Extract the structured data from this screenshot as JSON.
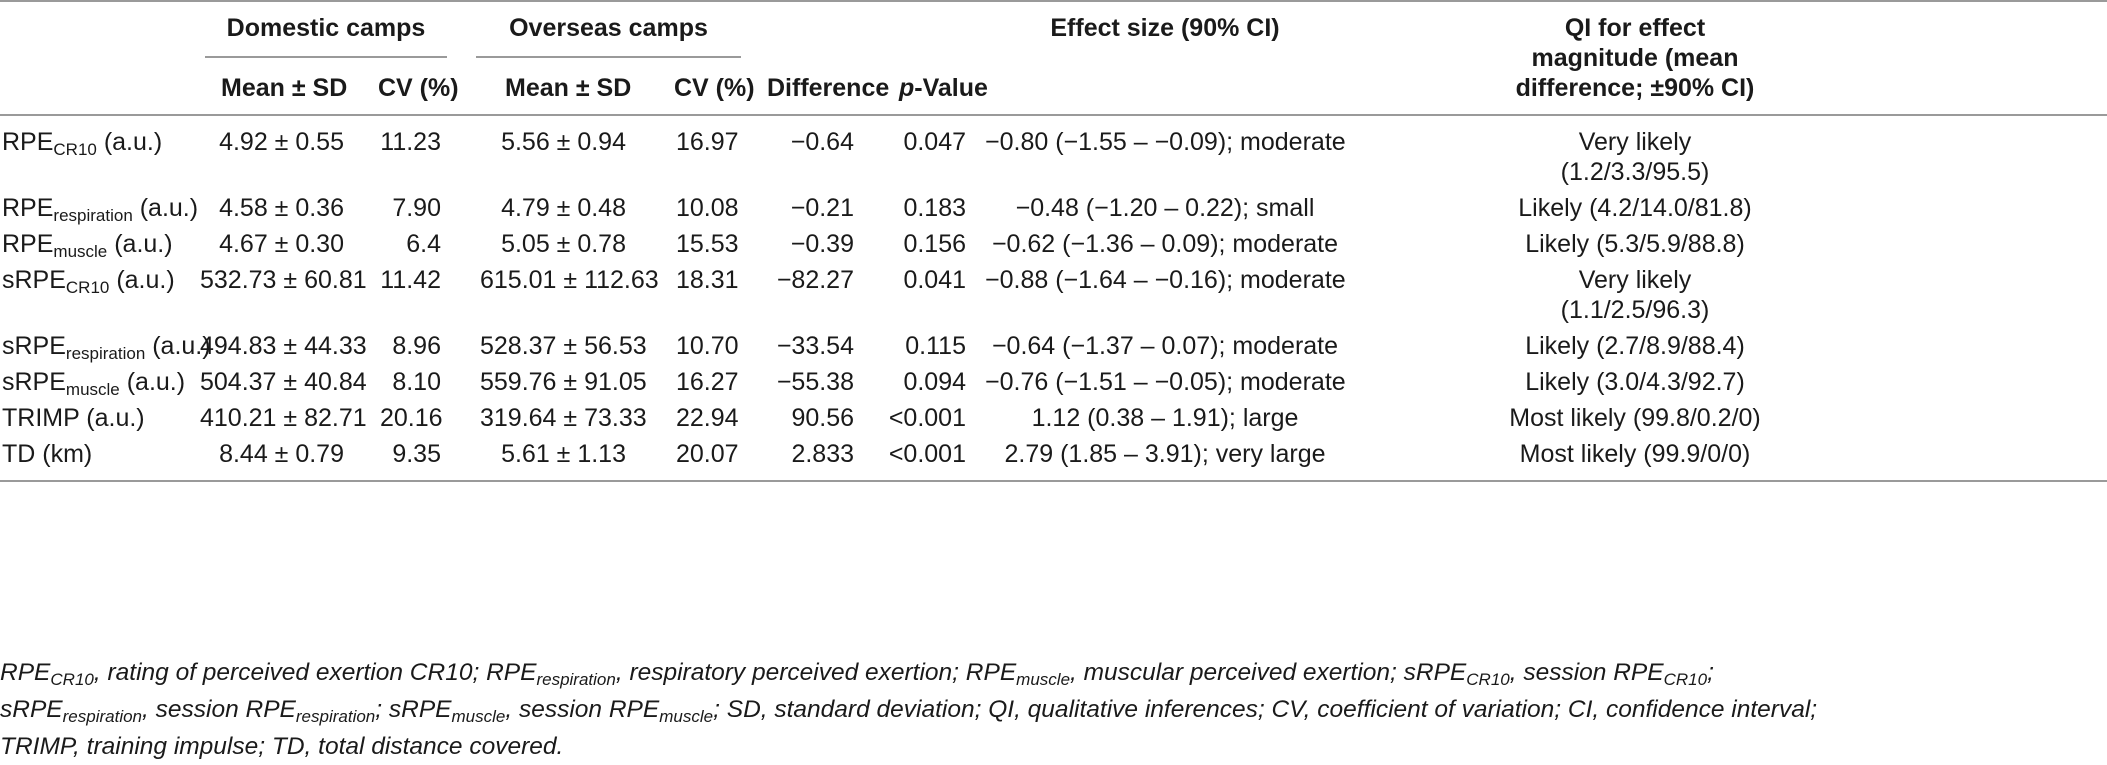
{
  "headers": {
    "domestic": "Domestic camps",
    "overseas": "Overseas camps",
    "mean_sd": "Mean ± SD",
    "cv": "CV (%)",
    "difference": "Difference",
    "p_italic": "p",
    "p_rest": "-Value",
    "effect_size": "Effect size (90% CI)",
    "qi_line1": "QI for effect",
    "qi_line2": "magnitude (mean",
    "qi_line3": "difference; ±90% CI)"
  },
  "rows": [
    {
      "base": "RPE",
      "sub": "CR10",
      "unit": " (a.u.)",
      "dom_mean": "4.92 ± 0.55",
      "dom_cv": "11.23",
      "ovs_mean": "5.56 ± 0.94",
      "ovs_cv": "16.97",
      "diff": "−0.64",
      "p": "0.047",
      "es": "−0.80 (−1.55 – −0.09); moderate",
      "qi1": "Very likely",
      "qi2": "(1.2/3.3/95.5)"
    },
    {
      "base": "RPE",
      "sub": "respiration",
      "unit": " (a.u.)",
      "dom_mean": "4.58 ± 0.36",
      "dom_cv": "7.90",
      "ovs_mean": "4.79 ± 0.48",
      "ovs_cv": "10.08",
      "diff": "−0.21",
      "p": "0.183",
      "es": "−0.48 (−1.20 – 0.22); small",
      "qi1": "Likely (4.2/14.0/81.8)",
      "qi2": ""
    },
    {
      "base": "RPE",
      "sub": "muscle",
      "unit": " (a.u.)",
      "dom_mean": "4.67 ± 0.30",
      "dom_cv": "6.4",
      "ovs_mean": "5.05 ± 0.78",
      "ovs_cv": "15.53",
      "diff": "−0.39",
      "p": "0.156",
      "es": "−0.62 (−1.36 – 0.09); moderate",
      "qi1": "Likely (5.3/5.9/88.8)",
      "qi2": ""
    },
    {
      "base": "sRPE",
      "sub": "CR10",
      "unit": " (a.u.)",
      "dom_mean": "532.73 ± 60.81",
      "dom_cv": "11.42",
      "ovs_mean": "615.01 ± 112.63",
      "ovs_cv": "18.31",
      "diff": "−82.27",
      "p": "0.041",
      "es": "−0.88 (−1.64 – −0.16); moderate",
      "qi1": "Very likely",
      "qi2": "(1.1/2.5/96.3)"
    },
    {
      "base": "sRPE",
      "sub": "respiration",
      "unit": " (a.u.)",
      "dom_mean": "494.83 ± 44.33",
      "dom_cv": "8.96",
      "ovs_mean": "528.37 ± 56.53",
      "ovs_cv": "10.70",
      "diff": "−33.54",
      "p": "0.115",
      "es": "−0.64 (−1.37 – 0.07); moderate",
      "qi1": "Likely (2.7/8.9/88.4)",
      "qi2": ""
    },
    {
      "base": "sRPE",
      "sub": "muscle",
      "unit": " (a.u.)",
      "dom_mean": "504.37 ± 40.84",
      "dom_cv": "8.10",
      "ovs_mean": "559.76 ± 91.05",
      "ovs_cv": "16.27",
      "diff": "−55.38",
      "p": "0.094",
      "es": "−0.76 (−1.51 – −0.05); moderate",
      "qi1": "Likely (3.0/4.3/92.7)",
      "qi2": ""
    },
    {
      "base": "TRIMP",
      "sub": "",
      "unit": " (a.u.)",
      "dom_mean": "410.21 ± 82.71",
      "dom_cv": "20.16",
      "ovs_mean": "319.64 ± 73.33",
      "ovs_cv": "22.94",
      "diff": "90.56",
      "p": "<0.001",
      "es": "1.12 (0.38 – 1.91); large",
      "qi1": "Most likely (99.8/0.2/0)",
      "qi2": ""
    },
    {
      "base": "TD",
      "sub": "",
      "unit": " (km)",
      "dom_mean": "8.44 ± 0.79",
      "dom_cv": "9.35",
      "ovs_mean": "5.61 ± 1.13",
      "ovs_cv": "20.07",
      "diff": "2.833",
      "p": "<0.001",
      "es": "2.79 (1.85 – 3.91); very large",
      "qi1": "Most likely (99.9/0/0)",
      "qi2": ""
    }
  ],
  "footnote": {
    "l1": [
      {
        "t": "RPE"
      },
      {
        "t": "CR10",
        "s": 1
      },
      {
        "t": ", rating of perceived exertion CR10; RPE"
      },
      {
        "t": "respiration",
        "s": 1
      },
      {
        "t": ", respiratory perceived exertion; RPE"
      },
      {
        "t": "muscle",
        "s": 1
      },
      {
        "t": ", muscular perceived exertion; sRPE"
      },
      {
        "t": "CR10",
        "s": 1
      },
      {
        "t": ", session RPE"
      },
      {
        "t": "CR10",
        "s": 1
      },
      {
        "t": ";"
      }
    ],
    "l2": [
      {
        "t": "sRPE"
      },
      {
        "t": "respiration",
        "s": 1
      },
      {
        "t": ", session RPE"
      },
      {
        "t": "respiration",
        "s": 1
      },
      {
        "t": "; sRPE"
      },
      {
        "t": "muscle",
        "s": 1
      },
      {
        "t": ", session RPE"
      },
      {
        "t": "muscle",
        "s": 1
      },
      {
        "t": "; SD, standard deviation; QI, qualitative inferences; CV, coefficient of variation; CI, confidence interval;"
      }
    ],
    "l3": [
      {
        "t": "TRIMP, training impulse; TD, total distance covered."
      }
    ]
  }
}
